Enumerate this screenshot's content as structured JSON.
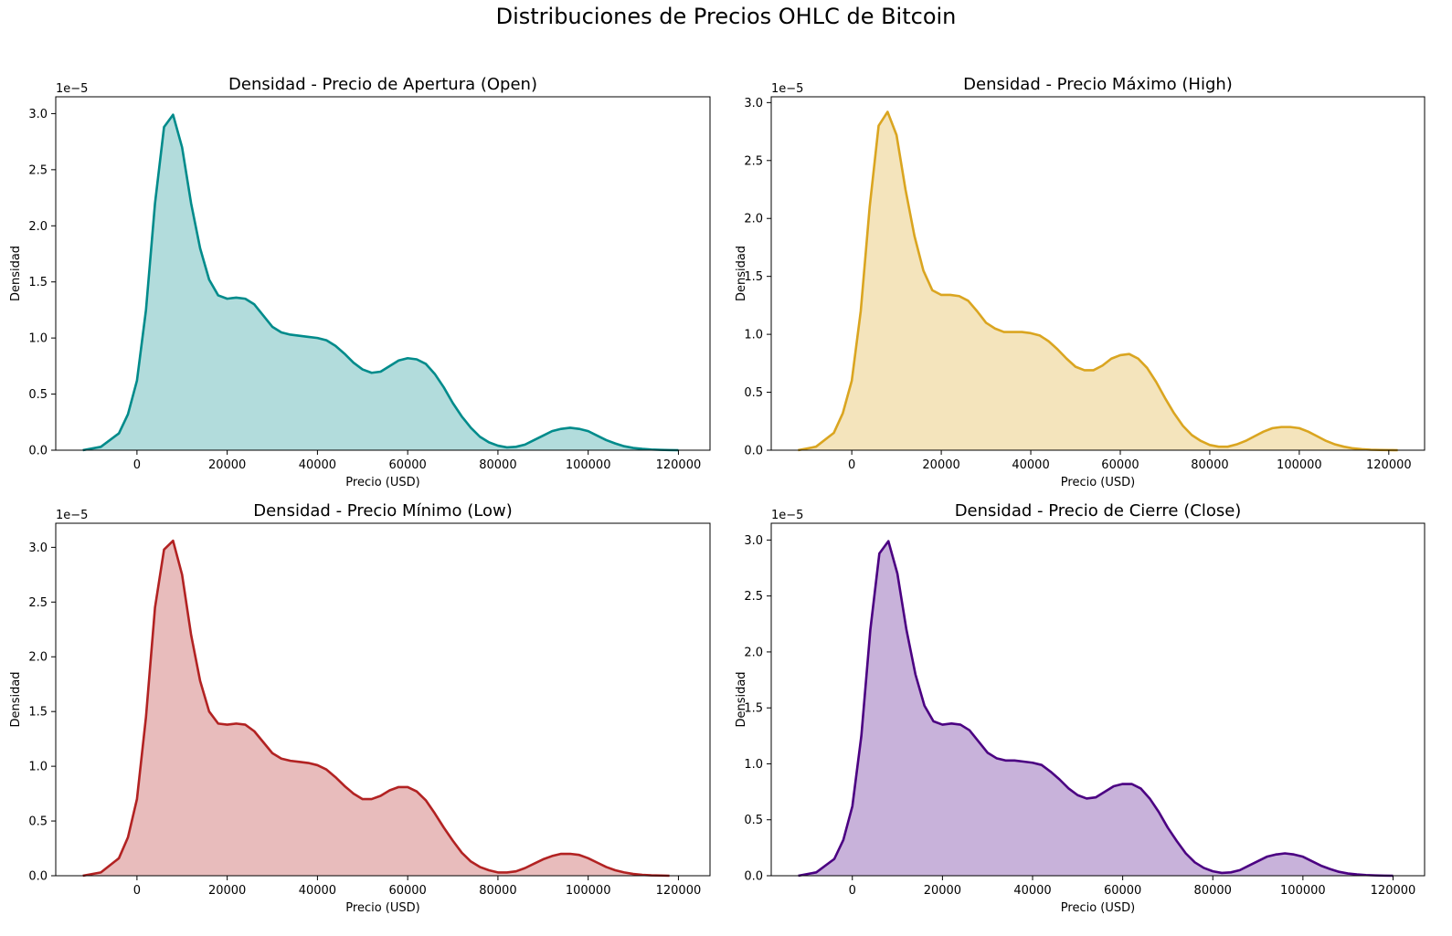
{
  "figure": {
    "suptitle": "Distribuciones de Precios OHLC de Bitcoin"
  },
  "chart_data": [
    {
      "type": "area",
      "title": "Densidad - Precio de Apertura (Open)",
      "xlabel": "Precio (USD)",
      "ylabel": "Densidad",
      "y_offset_label": "1e−5",
      "xlim": [
        -18000,
        127000
      ],
      "ylim": [
        0,
        3.15
      ],
      "xticks": [
        0,
        20000,
        40000,
        60000,
        80000,
        100000,
        120000
      ],
      "yticks": [
        0.0,
        0.5,
        1.0,
        1.5,
        2.0,
        2.5,
        3.0
      ],
      "line_color": "#008b8b",
      "fill_color": "#b2dcdc",
      "series": [
        {
          "x": [
            -12000,
            -8000,
            -4000,
            -2000,
            0,
            2000,
            4000,
            6000,
            8000,
            10000,
            12000,
            14000,
            16000,
            18000,
            20000,
            22000,
            24000,
            26000,
            28000,
            30000,
            32000,
            34000,
            36000,
            38000,
            40000,
            42000,
            44000,
            46000,
            48000,
            50000,
            52000,
            54000,
            56000,
            58000,
            60000,
            62000,
            64000,
            66000,
            68000,
            70000,
            72000,
            74000,
            76000,
            78000,
            80000,
            82000,
            84000,
            86000,
            88000,
            90000,
            92000,
            94000,
            96000,
            98000,
            100000,
            102000,
            104000,
            106000,
            108000,
            110000,
            112000,
            114000,
            116000,
            118000,
            120000
          ],
          "y": [
            0,
            0.03,
            0.15,
            0.32,
            0.62,
            1.25,
            2.2,
            2.88,
            2.99,
            2.7,
            2.2,
            1.8,
            1.52,
            1.38,
            1.35,
            1.36,
            1.35,
            1.3,
            1.2,
            1.1,
            1.05,
            1.03,
            1.02,
            1.01,
            1.0,
            0.98,
            0.93,
            0.86,
            0.78,
            0.72,
            0.69,
            0.7,
            0.75,
            0.8,
            0.82,
            0.81,
            0.77,
            0.68,
            0.56,
            0.42,
            0.3,
            0.2,
            0.12,
            0.07,
            0.04,
            0.025,
            0.03,
            0.05,
            0.09,
            0.13,
            0.17,
            0.19,
            0.2,
            0.19,
            0.17,
            0.13,
            0.09,
            0.06,
            0.035,
            0.02,
            0.012,
            0.006,
            0.003,
            0.001,
            0
          ]
        }
      ]
    },
    {
      "type": "area",
      "title": "Densidad - Precio Máximo (High)",
      "xlabel": "Precio (USD)",
      "ylabel": "Densidad",
      "y_offset_label": "1e−5",
      "xlim": [
        -18000,
        128000
      ],
      "ylim": [
        0,
        3.05
      ],
      "xticks": [
        0,
        20000,
        40000,
        60000,
        80000,
        100000,
        120000
      ],
      "yticks": [
        0.0,
        0.5,
        1.0,
        1.5,
        2.0,
        2.5,
        3.0
      ],
      "line_color": "#daa520",
      "fill_color": "#f4e4bc",
      "series": [
        {
          "x": [
            -12000,
            -8000,
            -4000,
            -2000,
            0,
            2000,
            4000,
            6000,
            8000,
            10000,
            12000,
            14000,
            16000,
            18000,
            20000,
            22000,
            24000,
            26000,
            28000,
            30000,
            32000,
            34000,
            36000,
            38000,
            40000,
            42000,
            44000,
            46000,
            48000,
            50000,
            52000,
            54000,
            56000,
            58000,
            60000,
            62000,
            64000,
            66000,
            68000,
            70000,
            72000,
            74000,
            76000,
            78000,
            80000,
            82000,
            84000,
            86000,
            88000,
            90000,
            92000,
            94000,
            96000,
            98000,
            100000,
            102000,
            104000,
            106000,
            108000,
            110000,
            112000,
            114000,
            116000,
            118000,
            120000,
            122000
          ],
          "y": [
            0,
            0.03,
            0.15,
            0.32,
            0.6,
            1.2,
            2.1,
            2.8,
            2.92,
            2.72,
            2.25,
            1.85,
            1.55,
            1.38,
            1.34,
            1.34,
            1.33,
            1.29,
            1.2,
            1.1,
            1.05,
            1.02,
            1.02,
            1.02,
            1.01,
            0.99,
            0.94,
            0.87,
            0.79,
            0.72,
            0.69,
            0.69,
            0.73,
            0.79,
            0.82,
            0.83,
            0.79,
            0.71,
            0.59,
            0.45,
            0.32,
            0.21,
            0.13,
            0.08,
            0.045,
            0.03,
            0.03,
            0.05,
            0.08,
            0.12,
            0.16,
            0.19,
            0.2,
            0.2,
            0.19,
            0.16,
            0.12,
            0.08,
            0.05,
            0.03,
            0.016,
            0.008,
            0.004,
            0.002,
            0.001,
            0
          ]
        }
      ]
    },
    {
      "type": "area",
      "title": "Densidad - Precio Mínimo (Low)",
      "xlabel": "Precio (USD)",
      "ylabel": "Densidad",
      "y_offset_label": "1e−5",
      "xlim": [
        -18000,
        127000
      ],
      "ylim": [
        0,
        3.22
      ],
      "xticks": [
        0,
        20000,
        40000,
        60000,
        80000,
        100000,
        120000
      ],
      "yticks": [
        0.0,
        0.5,
        1.0,
        1.5,
        2.0,
        2.5,
        3.0
      ],
      "line_color": "#b22222",
      "fill_color": "#e8bcbc",
      "series": [
        {
          "x": [
            -12000,
            -8000,
            -4000,
            -2000,
            0,
            2000,
            4000,
            6000,
            8000,
            10000,
            12000,
            14000,
            16000,
            18000,
            20000,
            22000,
            24000,
            26000,
            28000,
            30000,
            32000,
            34000,
            36000,
            38000,
            40000,
            42000,
            44000,
            46000,
            48000,
            50000,
            52000,
            54000,
            56000,
            58000,
            60000,
            62000,
            64000,
            66000,
            68000,
            70000,
            72000,
            74000,
            76000,
            78000,
            80000,
            82000,
            84000,
            86000,
            88000,
            90000,
            92000,
            94000,
            96000,
            98000,
            100000,
            102000,
            104000,
            106000,
            108000,
            110000,
            112000,
            114000,
            116000,
            118000
          ],
          "y": [
            0,
            0.03,
            0.16,
            0.35,
            0.7,
            1.45,
            2.45,
            2.98,
            3.06,
            2.75,
            2.2,
            1.78,
            1.5,
            1.39,
            1.38,
            1.39,
            1.38,
            1.32,
            1.22,
            1.12,
            1.07,
            1.05,
            1.04,
            1.03,
            1.01,
            0.97,
            0.9,
            0.82,
            0.75,
            0.7,
            0.7,
            0.73,
            0.78,
            0.81,
            0.81,
            0.77,
            0.69,
            0.57,
            0.44,
            0.32,
            0.21,
            0.13,
            0.08,
            0.05,
            0.03,
            0.03,
            0.04,
            0.07,
            0.11,
            0.15,
            0.18,
            0.2,
            0.2,
            0.19,
            0.16,
            0.12,
            0.08,
            0.05,
            0.03,
            0.016,
            0.008,
            0.004,
            0.002,
            0
          ]
        }
      ]
    },
    {
      "type": "area",
      "title": "Densidad - Precio de Cierre (Close)",
      "xlabel": "Precio (USD)",
      "ylabel": "Densidad",
      "y_offset_label": "1e−5",
      "xlim": [
        -18000,
        127000
      ],
      "ylim": [
        0,
        3.15
      ],
      "xticks": [
        0,
        20000,
        40000,
        60000,
        80000,
        100000,
        120000
      ],
      "yticks": [
        0.0,
        0.5,
        1.0,
        1.5,
        2.0,
        2.5,
        3.0
      ],
      "line_color": "#4b0082",
      "fill_color": "#c8b2da",
      "series": [
        {
          "x": [
            -12000,
            -8000,
            -4000,
            -2000,
            0,
            2000,
            4000,
            6000,
            8000,
            10000,
            12000,
            14000,
            16000,
            18000,
            20000,
            22000,
            24000,
            26000,
            28000,
            30000,
            32000,
            34000,
            36000,
            38000,
            40000,
            42000,
            44000,
            46000,
            48000,
            50000,
            52000,
            54000,
            56000,
            58000,
            60000,
            62000,
            64000,
            66000,
            68000,
            70000,
            72000,
            74000,
            76000,
            78000,
            80000,
            82000,
            84000,
            86000,
            88000,
            90000,
            92000,
            94000,
            96000,
            98000,
            100000,
            102000,
            104000,
            106000,
            108000,
            110000,
            112000,
            114000,
            116000,
            118000,
            120000
          ],
          "y": [
            0,
            0.03,
            0.15,
            0.32,
            0.62,
            1.25,
            2.2,
            2.88,
            2.99,
            2.7,
            2.2,
            1.8,
            1.52,
            1.38,
            1.35,
            1.36,
            1.35,
            1.3,
            1.2,
            1.1,
            1.05,
            1.03,
            1.03,
            1.02,
            1.01,
            0.99,
            0.93,
            0.86,
            0.78,
            0.72,
            0.69,
            0.7,
            0.75,
            0.8,
            0.82,
            0.82,
            0.78,
            0.69,
            0.57,
            0.43,
            0.31,
            0.2,
            0.12,
            0.07,
            0.04,
            0.025,
            0.03,
            0.05,
            0.09,
            0.13,
            0.17,
            0.19,
            0.2,
            0.19,
            0.17,
            0.13,
            0.09,
            0.06,
            0.035,
            0.02,
            0.012,
            0.006,
            0.003,
            0.001,
            0
          ]
        }
      ]
    }
  ]
}
